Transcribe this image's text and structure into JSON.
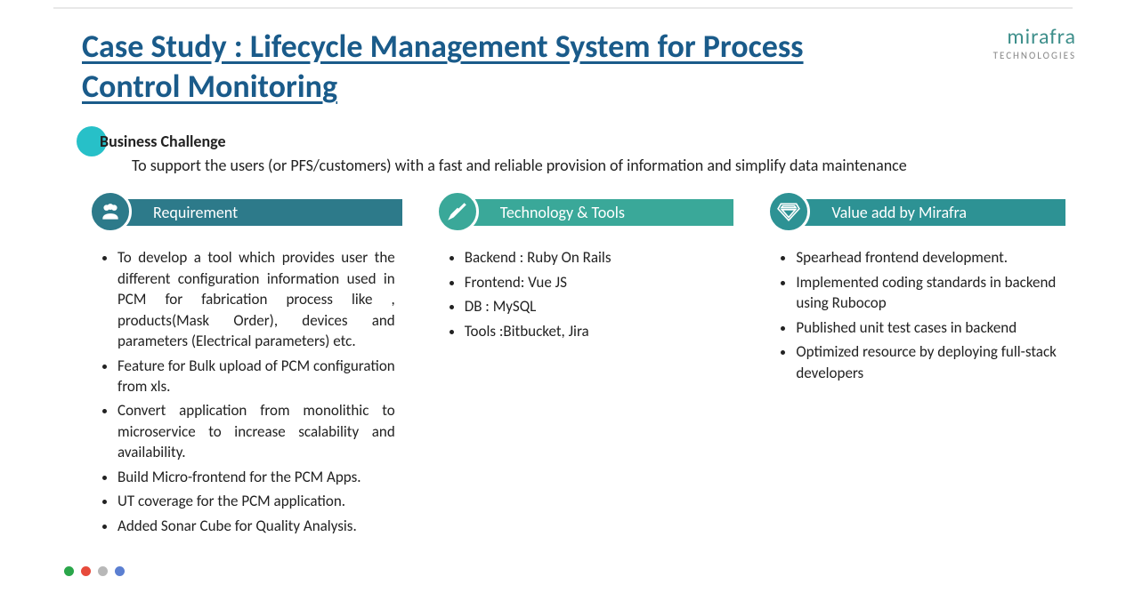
{
  "logo": {
    "main": "mirafra",
    "sub": "TECHNOLOGIES",
    "main_color": "#3e8f8b",
    "sub_color": "#888888"
  },
  "title": "Case Study : Lifecycle Management System for Process Control Monitoring",
  "title_color": "#1a5b8a",
  "business": {
    "heading": "Business Challenge",
    "text": "To support the users (or PFS/customers) with a fast and reliable provision of information and simplify data maintenance",
    "dot_color": "#27c0c8"
  },
  "columns": [
    {
      "key": "requirement",
      "label": "Requirement",
      "bar_color": "#2d7a8a",
      "icon": "people",
      "justify": true,
      "items": [
        "To develop a tool which provides user the different configuration information used in PCM for fabrication process like , products(Mask Order), devices and parameters (Electrical parameters) etc.",
        "Feature for Bulk upload of PCM configuration from xls.",
        "Convert application from monolithic to microservice to increase scalability and availability.",
        "Build Micro-frontend for the PCM Apps.",
        "UT coverage for the PCM application.",
        "Added Sonar Cube for Quality Analysis."
      ]
    },
    {
      "key": "tech",
      "label": "Technology & Tools",
      "bar_color": "#3aa899",
      "icon": "tools",
      "justify": false,
      "items": [
        "Backend : Ruby On Rails",
        "Frontend: Vue JS",
        "DB :  MySQL",
        "Tools :Bitbucket, Jira"
      ]
    },
    {
      "key": "value",
      "label": "Value add by Mirafra",
      "bar_color": "#2d9294",
      "icon": "diamond",
      "justify": false,
      "items": [
        "Spearhead frontend development.",
        "Implemented coding standards in backend using Rubocop",
        "Published unit test cases in backend",
        "Optimized resource by deploying full-stack developers"
      ]
    }
  ],
  "footer_dots": [
    "#2aa64a",
    "#e74a3b",
    "#b8b8b8",
    "#5b7fd1"
  ]
}
